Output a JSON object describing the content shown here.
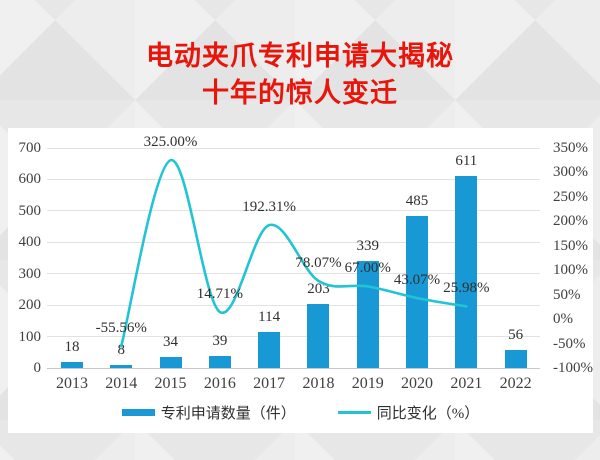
{
  "page_title": {
    "line1": "电动夹爪专利申请大揭秘",
    "line2": "十年的惊人变迁"
  },
  "colors": {
    "title_red": "#e8150b",
    "bar_blue": "#1899d5",
    "line_cyan": "#22c4d4",
    "grid": "#e2e2e2",
    "axis_line": "#c9c9c9",
    "axis_text": "#404040",
    "label_text": "#303030",
    "panel_bg": "#ffffff"
  },
  "chart_data": {
    "type": "bar+line combo",
    "title": "电动夹爪专利申请大揭秘 十年的惊人变迁",
    "categories": [
      "2013",
      "2014",
      "2015",
      "2016",
      "2017",
      "2018",
      "2019",
      "2020",
      "2021",
      "2022"
    ],
    "series": [
      {
        "name": "专利申请数量（件）",
        "type": "bar",
        "axis": "left",
        "values": [
          18,
          8,
          34,
          39,
          114,
          203,
          339,
          485,
          611,
          56
        ],
        "value_labels": [
          "18",
          "8",
          "34",
          "39",
          "114",
          "203",
          "339",
          "485",
          "611",
          "56"
        ]
      },
      {
        "name": "同比变化（%）",
        "type": "line",
        "axis": "right",
        "values": [
          null,
          -55.56,
          325.0,
          14.71,
          192.31,
          78.07,
          67.0,
          43.07,
          25.98,
          null
        ],
        "value_labels": [
          null,
          "-55.56%",
          "325.00%",
          "14.71%",
          "192.31%",
          "78.07%",
          "67.00%",
          "43.07%",
          "25.98%",
          null
        ]
      }
    ],
    "left_axis": {
      "min": 0,
      "max": 700,
      "step": 100,
      "tick_labels": [
        "0",
        "100",
        "200",
        "300",
        "400",
        "500",
        "600",
        "700"
      ]
    },
    "right_axis": {
      "min": -100,
      "max": 350,
      "step": 50,
      "tick_labels_top_to_bottom": [
        "350%",
        "300%",
        "250%",
        "200%",
        "150%",
        "100%",
        "50%",
        "0%",
        "-50%",
        "-100%"
      ]
    },
    "grid": "horizontal gridlines at left-axis ticks",
    "legend_position": "bottom"
  }
}
